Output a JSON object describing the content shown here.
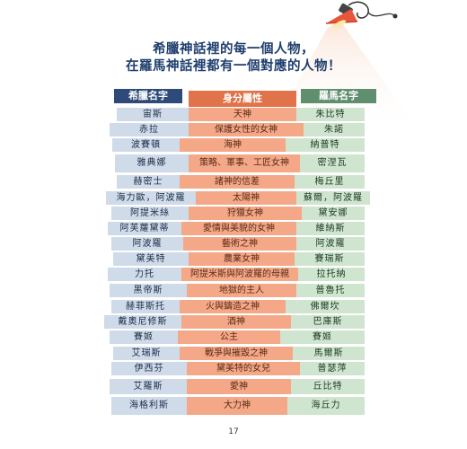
{
  "title": {
    "line1": "希臘神話裡的每一個人物，",
    "line2": "在羅馬神話裡都有一個對應的人物！"
  },
  "headers": {
    "greek": "希臘名字",
    "role": "身分屬性",
    "roman": "羅馬名字"
  },
  "rows": [
    {
      "greek": "宙斯",
      "role": "天神",
      "roman": "朱比特"
    },
    {
      "greek": "赤拉",
      "role": "保護女性的女神",
      "roman": "朱諾"
    },
    {
      "greek": "波賽頓",
      "role": "海神",
      "roman": "納普特"
    },
    {
      "greek": "雅典娜",
      "role": "策略、軍事、工匠女神",
      "roman": "密涅瓦"
    },
    {
      "greek": "赫密士",
      "role": "諸神的信差",
      "roman": "梅丘里"
    },
    {
      "greek": "海力歐，阿波羅",
      "role": "太陽神",
      "roman": "蘇爾，阿波羅"
    },
    {
      "greek": "阿提米絲",
      "role": "狩獵女神",
      "roman": "黛安娜"
    },
    {
      "greek": "阿芙蘿黛蒂",
      "role": "愛情與美貌的女神",
      "roman": "維納斯"
    },
    {
      "greek": "阿波羅",
      "role": "藝術之神",
      "roman": "阿波羅"
    },
    {
      "greek": "黛美特",
      "role": "農業女神",
      "roman": "賽瑞斯"
    },
    {
      "greek": "力托",
      "role": "阿提米斯與阿波羅的母親",
      "roman": "拉托納"
    },
    {
      "greek": "黑帝斯",
      "role": "地獄的主人",
      "roman": "普魯托"
    },
    {
      "greek": "赫菲斯托",
      "role": "火與鑄造之神",
      "roman": "佛爾坎"
    },
    {
      "greek": "戴奧尼修斯",
      "role": "酒神",
      "roman": "巴庫斯"
    },
    {
      "greek": "賽姬",
      "role": "公主",
      "roman": "賽姬"
    },
    {
      "greek": "艾瑞斯",
      "role": "戰爭與摧毀之神",
      "roman": "馬爾斯"
    },
    {
      "greek": "伊西芬",
      "role": "黛美特的女兒",
      "roman": "普瑟萍"
    },
    {
      "greek": "艾羅斯",
      "role": "愛神",
      "roman": "丘比特"
    },
    {
      "greek": "海格利斯",
      "role": "大力神",
      "roman": "海丘力"
    }
  ],
  "page_number": "17",
  "colors": {
    "title": "#1f3f6e",
    "greek_header": "#2d4a78",
    "role_header": "#e0734a",
    "roman_header": "#5f8f6f",
    "greek_cell": "#cfdbe9",
    "role_cell": "#f4a888",
    "roman_cell": "#cfe5cf",
    "lamp": "#e8553a"
  },
  "icons": {
    "decoration": "desk-lamp-icon"
  }
}
